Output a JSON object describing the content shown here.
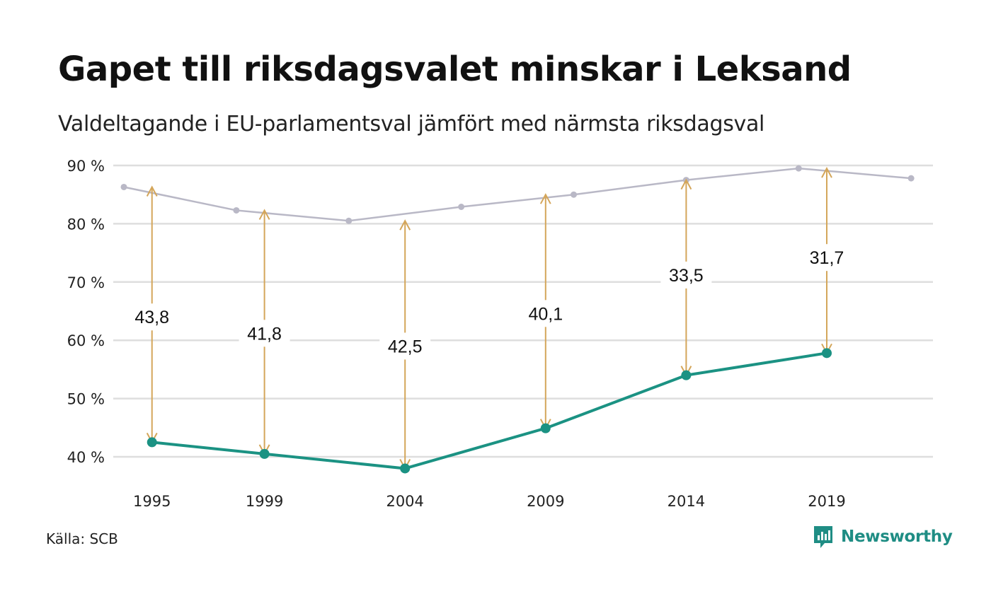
{
  "chart_data": {
    "type": "line",
    "title": "Gapet till riksdagsvalet minskar i Leksand",
    "subtitle": "Valdeltagande i EU-parlamentsval jämfört med närmsta riksdagsval",
    "source": "Källa: SCB",
    "brand": "Newsworthy",
    "ylim": [
      40,
      90
    ],
    "xlim": [
      1994,
      2022.5
    ],
    "y_ticks": [
      40,
      50,
      60,
      70,
      80,
      90
    ],
    "y_tick_labels": [
      "40 %",
      "50 %",
      "60 %",
      "70 %",
      "80 %",
      "90 %"
    ],
    "x_ticks": [
      1995,
      1999,
      2004,
      2009,
      2014,
      2019
    ],
    "x_tick_labels": [
      "1995",
      "1999",
      "2004",
      "2009",
      "2014",
      "2019"
    ],
    "grid": "horizontal",
    "series": [
      {
        "x": [
          1994,
          1998,
          2002,
          2006,
          2010,
          2014,
          2018,
          2022
        ],
        "values": [
          86.3,
          82.3,
          80.5,
          82.9,
          85.0,
          87.5,
          89.5,
          87.8
        ],
        "color": "#b9b8c6"
      },
      {
        "x": [
          1995,
          1999,
          2004,
          2009,
          2014,
          2019
        ],
        "values": [
          42.5,
          40.5,
          38.0,
          44.9,
          54.0,
          57.8
        ],
        "color": "#1b9283"
      }
    ],
    "gaps": {
      "x": [
        1995,
        1999,
        2004,
        2009,
        2014,
        2019
      ],
      "from": [
        86.3,
        82.3,
        80.5,
        85.0,
        87.5,
        89.5
      ],
      "to": [
        42.5,
        40.5,
        38.0,
        44.9,
        54.0,
        57.8
      ],
      "labels": [
        "43,8",
        "41,8",
        "42,5",
        "40,1",
        "33,5",
        "31,7"
      ],
      "label_y": [
        64,
        61.2,
        59,
        64.6,
        71.2,
        74.2
      ],
      "color": "#d4a65a"
    }
  }
}
